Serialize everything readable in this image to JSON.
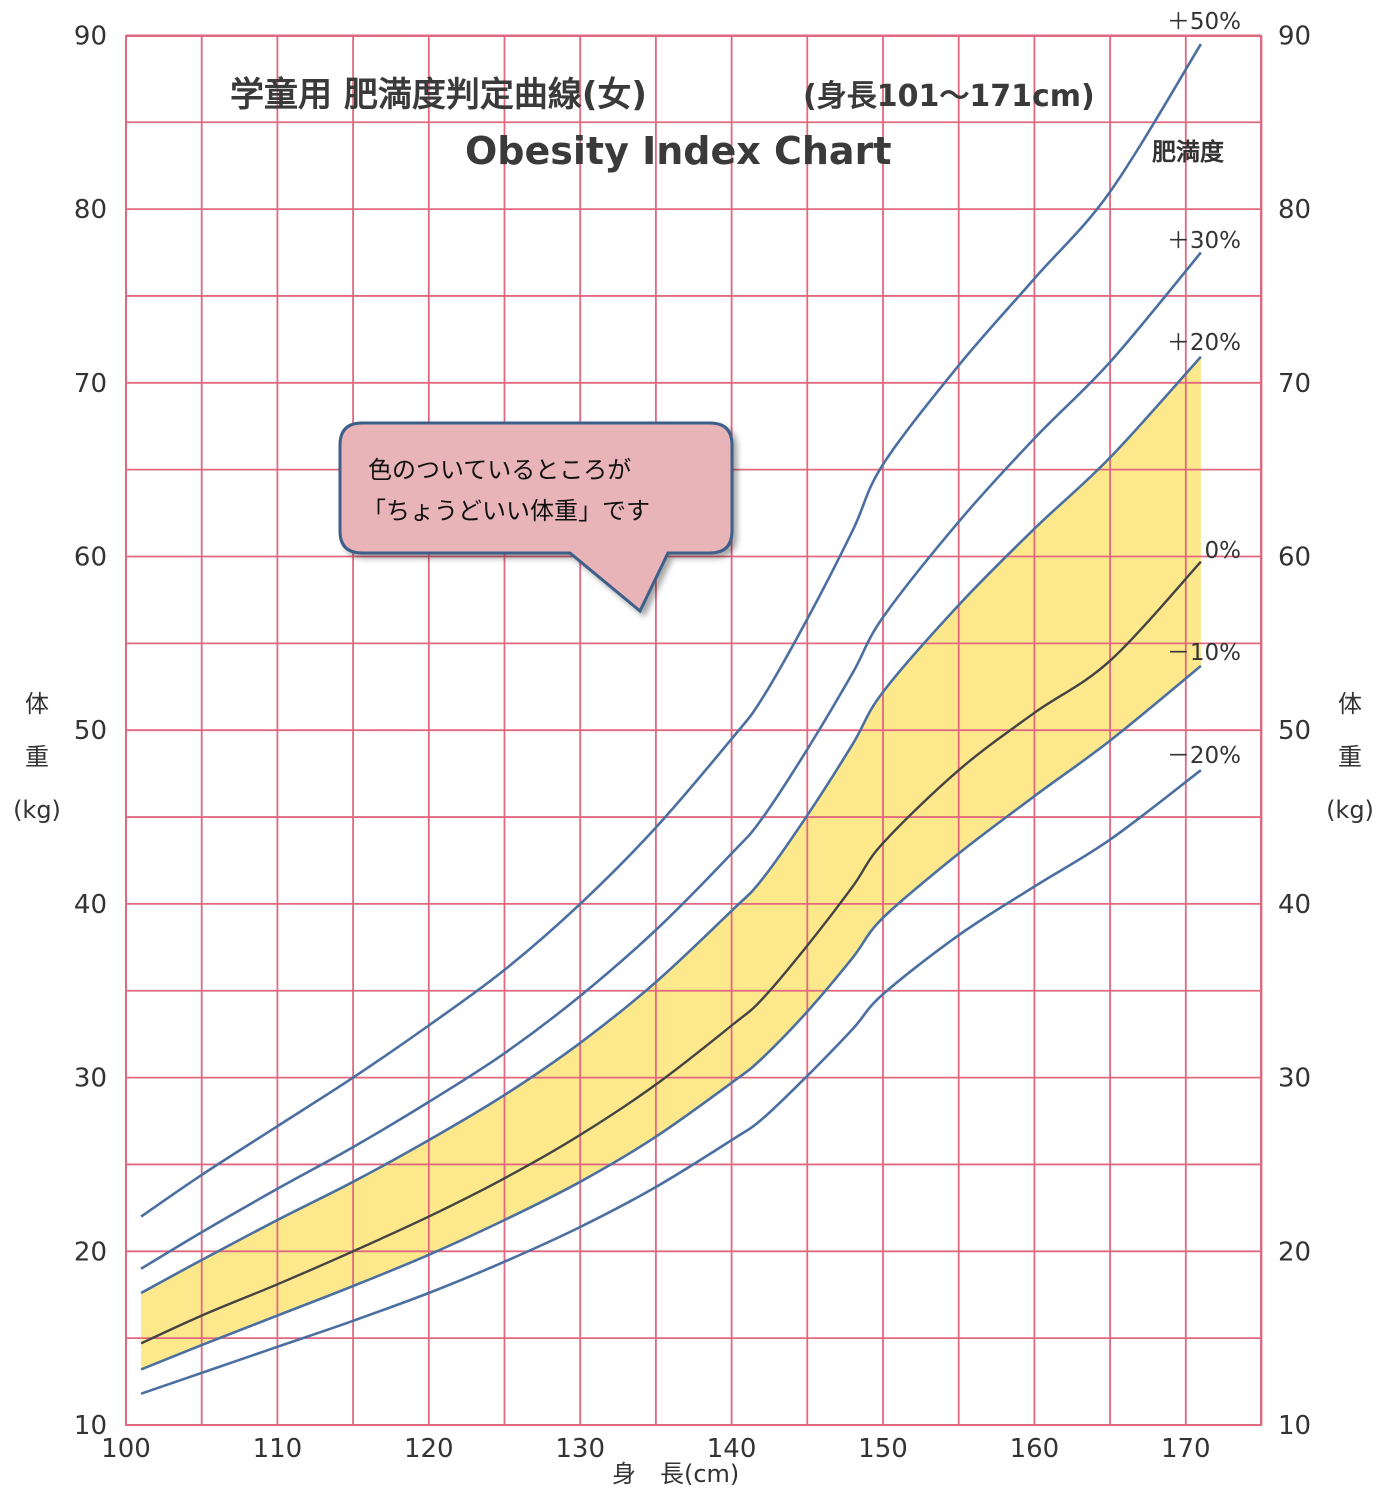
{
  "chart_data": {
    "type": "line",
    "title": "学童用 肥満度判定曲線(女)",
    "title_suffix": "(身長101〜171cm)",
    "subtitle": "Obesity Index Chart",
    "xlabel": "身　長(cm)",
    "ylabel_left": [
      "体",
      "重",
      "(kg)"
    ],
    "ylabel_right": [
      "体",
      "重",
      "(kg)"
    ],
    "xlim": [
      100,
      175
    ],
    "ylim": [
      10,
      90
    ],
    "x_ticks": [
      100,
      110,
      120,
      130,
      140,
      150,
      160,
      170
    ],
    "y_ticks": [
      10,
      20,
      30,
      40,
      50,
      60,
      70,
      80,
      90
    ],
    "grid": true,
    "grid_color": "#e0697f",
    "line_color": "#4a6fa0",
    "median_color": "#444444",
    "band_color": "#fde98c",
    "legend_title": "肥満度",
    "band": {
      "lower": "－10%",
      "upper": "＋20%"
    },
    "callout": [
      "色のついているところが",
      "「ちょうどいい体重」です"
    ],
    "x": [
      101,
      105,
      110,
      115,
      120,
      125,
      130,
      135,
      140,
      142,
      145,
      148,
      150,
      155,
      160,
      165,
      171
    ],
    "series": [
      {
        "name": "＋50%",
        "values": [
          22.0,
          24.4,
          27.2,
          30.0,
          33.0,
          36.2,
          40.0,
          44.4,
          49.5,
          51.8,
          56.4,
          61.5,
          65.3,
          71.0,
          76.0,
          81.0,
          89.5
        ]
      },
      {
        "name": "＋30%",
        "values": [
          19.0,
          21.1,
          23.6,
          26.0,
          28.6,
          31.4,
          34.7,
          38.5,
          42.9,
          44.9,
          48.9,
          53.3,
          56.5,
          62.0,
          66.8,
          71.2,
          77.5
        ]
      },
      {
        "name": "＋20%",
        "values": [
          17.6,
          19.5,
          21.8,
          24.0,
          26.4,
          29.0,
          32.0,
          35.5,
          39.6,
          41.4,
          45.1,
          49.2,
          52.2,
          57.2,
          61.6,
          65.7,
          71.5
        ]
      },
      {
        "name": "0%",
        "values": [
          14.7,
          16.3,
          18.1,
          20.0,
          22.0,
          24.2,
          26.7,
          29.6,
          33.0,
          34.5,
          37.6,
          41.0,
          43.5,
          47.7,
          51.0,
          54.0,
          59.7
        ]
      },
      {
        "name": "－10%",
        "values": [
          13.2,
          14.6,
          16.3,
          18.0,
          19.8,
          21.8,
          24.0,
          26.6,
          29.7,
          31.1,
          33.8,
          36.9,
          39.2,
          42.9,
          46.2,
          49.4,
          53.7
        ]
      },
      {
        "name": "－20%",
        "values": [
          11.8,
          13.0,
          14.5,
          16.0,
          17.6,
          19.4,
          21.4,
          23.7,
          26.4,
          27.6,
          30.1,
          32.8,
          34.8,
          38.2,
          41.0,
          43.7,
          47.7
        ]
      }
    ]
  }
}
